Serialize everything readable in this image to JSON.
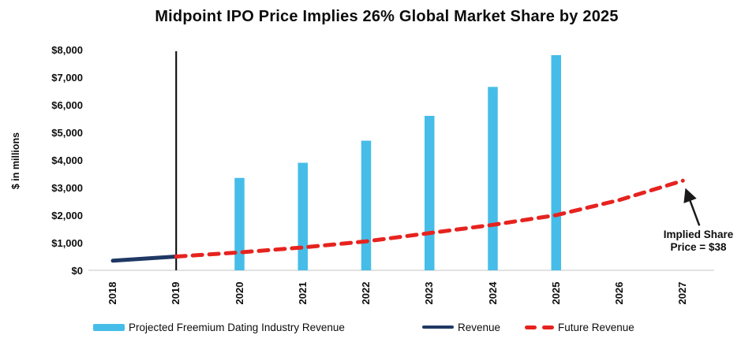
{
  "chart_data": {
    "type": "combo",
    "title": "Midpoint IPO Price Implies 26% Global Market Share by 2025",
    "ylabel": "$ in millions",
    "xlabel": "",
    "ylim": [
      0,
      8000
    ],
    "grid": false,
    "legend_position": "bottom",
    "y_tick_labels": [
      "$0",
      "$1,000",
      "$2,000",
      "$3,000",
      "$4,000",
      "$5,000",
      "$6,000",
      "$7,000",
      "$8,000"
    ],
    "y_tick_values": [
      0,
      1000,
      2000,
      3000,
      4000,
      5000,
      6000,
      7000,
      8000
    ],
    "categories": [
      "2018",
      "2019",
      "2020",
      "2021",
      "2022",
      "2023",
      "2024",
      "2025",
      "2026",
      "2027"
    ],
    "series": [
      {
        "name": "Projected Freemium Dating Industry Revenue",
        "type": "bar",
        "color": "#45BDE8",
        "values": [
          null,
          null,
          3350,
          3900,
          4700,
          5600,
          6650,
          7800,
          null,
          null
        ]
      },
      {
        "name": "Revenue",
        "type": "line",
        "color": "#1F3864",
        "values": [
          350,
          500,
          null,
          null,
          null,
          null,
          null,
          null,
          null,
          null
        ]
      },
      {
        "name": "Future Revenue",
        "type": "dashed_line",
        "color": "#E6231F",
        "values": [
          null,
          500,
          650,
          830,
          1050,
          1350,
          1650,
          2000,
          2550,
          3250
        ]
      }
    ],
    "marker_line": {
      "category": "2019",
      "color": "#000000"
    },
    "axis_line_color": "#D9D9D9",
    "annotation": {
      "lines": [
        "Implied Share",
        "Price = $38"
      ],
      "points_to_category": "2027",
      "arrow_color": "#1a1a1a"
    }
  }
}
